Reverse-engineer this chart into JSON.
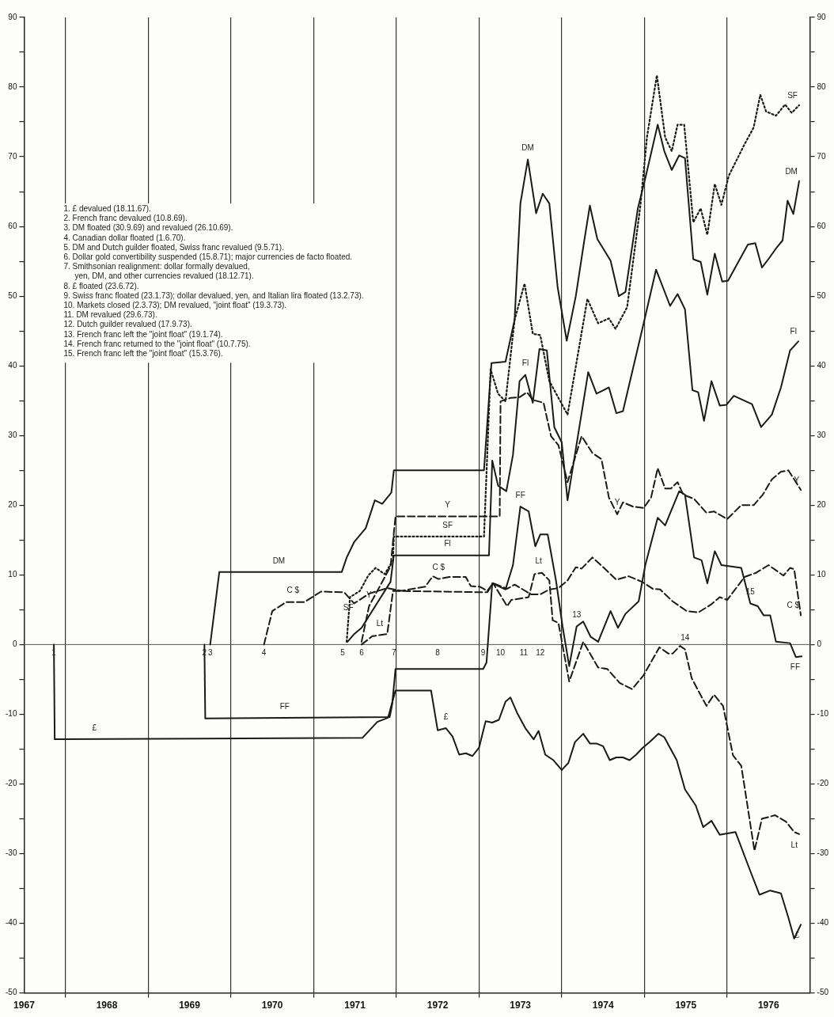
{
  "chart_data": {
    "type": "line",
    "xlim": [
      1967.5,
      1977
    ],
    "xticks": [
      {
        "value": 1967.5,
        "label": "1967"
      },
      {
        "value": 1968,
        "label": null
      },
      {
        "value": 1968.5,
        "label": "1968"
      },
      {
        "value": 1969,
        "label": null
      },
      {
        "value": 1969.5,
        "label": "1969"
      },
      {
        "value": 1970,
        "label": null
      },
      {
        "value": 1970.5,
        "label": "1970"
      },
      {
        "value": 1971,
        "label": null
      },
      {
        "value": 1971.5,
        "label": "1971"
      },
      {
        "value": 1972,
        "label": null
      },
      {
        "value": 1972.5,
        "label": "1972"
      },
      {
        "value": 1973,
        "label": null
      },
      {
        "value": 1973.5,
        "label": "1973"
      },
      {
        "value": 1974,
        "label": null
      },
      {
        "value": 1974.5,
        "label": "1974"
      },
      {
        "value": 1975,
        "label": null
      },
      {
        "value": 1975.5,
        "label": "1975"
      },
      {
        "value": 1976,
        "label": null
      },
      {
        "value": 1976.5,
        "label": "1976"
      }
    ],
    "ylim": [
      -50,
      90
    ],
    "yticks": [
      -50,
      {
        "value": -45,
        "label": null
      },
      -40,
      {
        "value": -35,
        "label": null
      },
      -30,
      {
        "value": -25,
        "label": null
      },
      -20,
      {
        "value": -15,
        "label": null
      },
      -10,
      {
        "value": -5,
        "label": null
      },
      0,
      {
        "value": 5,
        "label": null
      },
      10,
      {
        "value": 15,
        "label": null
      },
      20,
      {
        "value": 25,
        "label": null
      },
      30,
      {
        "value": 35,
        "label": null
      },
      40,
      {
        "value": 45,
        "label": null
      },
      50,
      {
        "value": 55,
        "label": null
      },
      60,
      {
        "value": 65,
        "label": null
      },
      70,
      {
        "value": 75,
        "label": null
      },
      80,
      {
        "value": 85,
        "label": null
      },
      90
    ],
    "y2lim": [
      -50,
      90
    ],
    "y2ticks": [
      -50,
      {
        "value": -45,
        "label": null
      },
      -40,
      {
        "value": -35,
        "label": null
      },
      -30,
      {
        "value": -25,
        "label": null
      },
      -20,
      {
        "value": -15,
        "label": null
      },
      -10,
      {
        "value": -5,
        "label": null
      },
      0,
      {
        "value": 5,
        "label": null
      },
      10,
      {
        "value": 15,
        "label": null
      },
      20,
      {
        "value": 25,
        "label": null
      },
      30,
      {
        "value": 35,
        "label": null
      },
      40,
      {
        "value": 45,
        "label": null
      },
      50,
      {
        "value": 55,
        "label": null
      },
      60,
      {
        "value": 65,
        "label": null
      },
      70,
      {
        "value": 75,
        "label": null
      },
      80,
      {
        "value": 85,
        "label": null
      },
      90
    ],
    "grid": "x",
    "legend": false,
    "ref_lines": [
      {
        "axis": "y",
        "value": 0,
        "color": "#555555"
      }
    ],
    "series": [
      {
        "name": "DM",
        "color": "#1a1a1a",
        "line_style": "solid",
        "x": [
          1969.75,
          1969.86,
          1971.34,
          1971.4,
          1971.49,
          1971.63,
          1971.74,
          1971.83,
          1971.94,
          1971.97,
          1973.06,
          1973.15,
          1973.32,
          1973.43,
          1973.5,
          1973.59,
          1973.69,
          1973.77,
          1973.85,
          1973.95,
          1974.06,
          1974.17,
          1974.27,
          1974.34,
          1974.43,
          1974.59,
          1974.69,
          1974.77,
          1974.92,
          1975.01,
          1975.16,
          1975.24,
          1975.33,
          1975.42,
          1975.49,
          1975.59,
          1975.68,
          1975.76,
          1975.85,
          1975.94,
          1976.01,
          1976.25,
          1976.34,
          1976.42,
          1976.51,
          1976.6,
          1976.67,
          1976.73,
          1976.8,
          1976.87
        ],
        "values": [
          0,
          10.4,
          10.4,
          12.5,
          14.7,
          16.7,
          20.7,
          20.2,
          21.8,
          25,
          25,
          40.4,
          40.6,
          46.6,
          63.3,
          69.6,
          61.9,
          64.7,
          63.3,
          51.3,
          43.6,
          50,
          57.8,
          63,
          58.2,
          55.1,
          50,
          50.6,
          62.6,
          66.9,
          74.6,
          70.8,
          68.1,
          70.2,
          69.8,
          55.3,
          54.9,
          50.2,
          56.1,
          52.1,
          52.2,
          57.4,
          57.6,
          54.1,
          55.5,
          57,
          58,
          63.7,
          61.8,
          66.5
        ]
      },
      {
        "name": "SF",
        "color": "#1a1a1a",
        "line_style": "dotted",
        "x": [
          1971.4,
          1971.44,
          1971.56,
          1971.66,
          1971.75,
          1971.86,
          1971.96,
          1971.97,
          1973.06,
          1973.14,
          1973.23,
          1973.32,
          1973.43,
          1973.55,
          1973.65,
          1973.74,
          1973.85,
          1974.07,
          1974.31,
          1974.44,
          1974.57,
          1974.65,
          1974.79,
          1974.95,
          1975.03,
          1975.15,
          1975.25,
          1975.33,
          1975.4,
          1975.48,
          1975.59,
          1975.68,
          1975.76,
          1975.85,
          1975.93,
          1976.02,
          1976.21,
          1976.32,
          1976.4,
          1976.47,
          1976.59,
          1976.7,
          1976.78,
          1976.87
        ],
        "values": [
          0.4,
          6.8,
          7.7,
          9.9,
          11,
          10.1,
          12.1,
          15.5,
          15.5,
          39.5,
          36,
          34.9,
          46.6,
          51.8,
          44.6,
          44.4,
          37.8,
          33,
          49.6,
          46.1,
          46.8,
          45.3,
          48.4,
          62.9,
          72.8,
          81.7,
          72.8,
          70.8,
          74.6,
          74.6,
          60.6,
          62.6,
          58.8,
          66.1,
          63.1,
          67.3,
          71.8,
          74.2,
          78.9,
          76.5,
          75.9,
          77.5,
          76.3,
          77.4
        ]
      },
      {
        "name": "Fl",
        "color": "#1a1a1a",
        "line_style": "solid",
        "x": [
          1971.41,
          1971.49,
          1971.58,
          1971.93,
          1971.97,
          1973.12,
          1973.16,
          1973.23,
          1973.33,
          1973.41,
          1973.49,
          1973.56,
          1973.65,
          1973.73,
          1973.82,
          1973.91,
          1974,
          1974.07,
          1974.32,
          1974.42,
          1974.57,
          1974.66,
          1974.74,
          1974.99,
          1975.14,
          1975.31,
          1975.4,
          1975.49,
          1975.58,
          1975.65,
          1975.72,
          1975.81,
          1975.91,
          1975.99,
          1976.08,
          1976.3,
          1976.41,
          1976.54,
          1976.65,
          1976.76,
          1976.86
        ],
        "values": [
          0.4,
          1.5,
          2.4,
          9,
          12.8,
          12.8,
          26.4,
          22.8,
          22,
          27.2,
          37.8,
          38.7,
          34.7,
          42.4,
          42.2,
          31.2,
          29,
          20.7,
          39.1,
          36,
          36.9,
          33.2,
          33.5,
          46.1,
          53.8,
          48.6,
          50.3,
          48.1,
          36.5,
          36.2,
          32.1,
          37.8,
          34.3,
          34.4,
          35.7,
          34.5,
          31.2,
          33,
          36.9,
          42.2,
          43.5
        ]
      },
      {
        "name": "Y",
        "color": "#1a1a1a",
        "line_style": "dashed",
        "x": [
          1971.58,
          1971.67,
          1971.93,
          1971.99,
          1973.25,
          1973.26,
          1973.38,
          1973.49,
          1973.58,
          1973.65,
          1973.78,
          1973.87,
          1973.96,
          1974.07,
          1974.24,
          1974.37,
          1974.48,
          1974.57,
          1974.67,
          1974.74,
          1974.86,
          1974.99,
          1975.08,
          1975.16,
          1975.25,
          1975.32,
          1975.4,
          1975.47,
          1975.6,
          1975.75,
          1975.84,
          1976,
          1976.17,
          1976.32,
          1976.43,
          1976.54,
          1976.65,
          1976.74,
          1976.81,
          1976.89
        ],
        "values": [
          0.4,
          5.5,
          11.2,
          18.4,
          18.4,
          34.9,
          35.4,
          35.5,
          36.2,
          35.1,
          34.7,
          29.9,
          28.6,
          23.3,
          29.9,
          27.5,
          26.6,
          21.1,
          18.7,
          20.4,
          19.8,
          19.6,
          21.1,
          25.3,
          22.4,
          22.4,
          23.3,
          21.5,
          20.9,
          18.9,
          19.1,
          18,
          20,
          20,
          21.5,
          23.7,
          24.8,
          25,
          23.7,
          22.2
        ]
      },
      {
        "name": "C $",
        "color": "#1a1a1a",
        "line_style": "dashed",
        "x": [
          1970.4,
          1970.5,
          1970.67,
          1970.89,
          1971.09,
          1971.37,
          1971.49,
          1971.67,
          1971.89,
          1972.06,
          1972.35,
          1972.44,
          1972.51,
          1972.64,
          1972.84,
          1972.9,
          1973.01,
          1973.1,
          1973.17,
          1973.34,
          1973.43,
          1973.63,
          1973.74,
          1973.85,
          1973.96,
          1974.07,
          1974.17,
          1974.24,
          1974.37,
          1974.51,
          1974.66,
          1974.81,
          1974.97,
          1975.1,
          1975.19,
          1975.34,
          1975.51,
          1975.65,
          1975.8,
          1975.91,
          1976,
          1976.21,
          1976.35,
          1976.5,
          1976.68,
          1976.76,
          1976.81,
          1976.89
        ],
        "values": [
          0,
          4.8,
          6.1,
          6.1,
          7.6,
          7.5,
          5.9,
          7.3,
          8.1,
          7.7,
          8.3,
          9.8,
          9.4,
          9.7,
          9.7,
          8.4,
          8.3,
          7.7,
          8.8,
          8,
          8.6,
          7.2,
          7.2,
          7.9,
          8.1,
          9.2,
          11.1,
          10.9,
          12.5,
          11,
          9.3,
          9.8,
          9,
          8,
          7.9,
          6.2,
          4.8,
          4.6,
          5.7,
          6.8,
          6.4,
          9.7,
          10.3,
          11.4,
          9.9,
          11,
          10.8,
          4.2
        ]
      },
      {
        "name": "FF",
        "color": "#1a1a1a",
        "line_style": "solid",
        "x": [
          1969.68,
          1969.69,
          1971.92,
          1971.95,
          1971.99,
          1973.05,
          1973.09,
          1973.16,
          1973.32,
          1973.41,
          1973.5,
          1973.6,
          1973.68,
          1973.74,
          1973.83,
          1973.93,
          1974.01,
          1974.09,
          1974.18,
          1974.26,
          1974.35,
          1974.44,
          1974.59,
          1974.68,
          1974.77,
          1974.93,
          1975.01,
          1975.16,
          1975.25,
          1975.42,
          1975.49,
          1975.6,
          1975.69,
          1975.76,
          1975.85,
          1975.93,
          1976.17,
          1976.28,
          1976.37,
          1976.44,
          1976.52,
          1976.59,
          1976.76,
          1976.83,
          1976.9
        ],
        "values": [
          0,
          -10.6,
          -10.4,
          -8.6,
          -3.5,
          -3.5,
          -2.6,
          8.8,
          7.9,
          11.4,
          19.8,
          19.1,
          14.1,
          15.8,
          15.8,
          9.2,
          2.6,
          -3.1,
          2.6,
          3.3,
          1.1,
          0.4,
          4.8,
          2.4,
          4.4,
          6.2,
          11.4,
          18.2,
          17.1,
          22,
          21.5,
          12.5,
          12.1,
          8.8,
          13.4,
          11.4,
          11,
          5.9,
          5.5,
          4.2,
          4.2,
          0.4,
          0.2,
          -1.8,
          -1.7
        ]
      },
      {
        "name": "Lt",
        "color": "#1a1a1a",
        "line_style": "dashed",
        "x": [
          1971.58,
          1971.71,
          1971.89,
          1971.96,
          1973.1,
          1973.17,
          1973.34,
          1973.39,
          1973.5,
          1973.6,
          1973.67,
          1973.76,
          1973.85,
          1973.89,
          1973.96,
          1974.09,
          1974.26,
          1974.44,
          1974.55,
          1974.7,
          1974.85,
          1974.99,
          1975.18,
          1975.29,
          1975.34,
          1975.43,
          1975.49,
          1975.57,
          1975.64,
          1975.75,
          1975.84,
          1975.95,
          1976.07,
          1976.17,
          1976.33,
          1976.42,
          1976.58,
          1976.71,
          1976.81,
          1976.87
        ],
        "values": [
          0,
          1.2,
          1.5,
          7.7,
          7.5,
          8.8,
          5.5,
          6.4,
          6.6,
          6.8,
          10.1,
          10.3,
          9.2,
          3.5,
          3.1,
          -5.3,
          0.4,
          -3.3,
          -3.5,
          -5.5,
          -6.4,
          -4.4,
          -0.4,
          -1.3,
          -1.3,
          -0.2,
          -0.7,
          -4.8,
          -6.4,
          -8.8,
          -7.2,
          -8.8,
          -15.9,
          -17.4,
          -29.6,
          -25,
          -24.5,
          -25.4,
          -26.9,
          -27.2
        ]
      },
      {
        "name": "£",
        "color": "#1a1a1a",
        "line_style": "solid",
        "x": [
          1967.86,
          1967.87,
          1971.59,
          1971.77,
          1971.9,
          1971.99,
          1972.42,
          1972.5,
          1972.6,
          1972.68,
          1972.76,
          1972.84,
          1972.92,
          1973,
          1973.08,
          1973.16,
          1973.24,
          1973.32,
          1973.38,
          1973.46,
          1973.56,
          1973.66,
          1973.72,
          1973.8,
          1973.9,
          1974,
          1974.08,
          1974.16,
          1974.26,
          1974.34,
          1974.42,
          1974.5,
          1974.58,
          1974.66,
          1974.74,
          1974.82,
          1974.9,
          1974.98,
          1975.06,
          1975.17,
          1975.24,
          1975.39,
          1975.49,
          1975.62,
          1975.71,
          1975.81,
          1975.91,
          1976.1,
          1976.26,
          1976.39,
          1976.52,
          1976.65,
          1976.74,
          1976.81,
          1976.89
        ],
        "values": [
          0,
          -13.6,
          -13.4,
          -11.1,
          -10.5,
          -6.6,
          -6.6,
          -12.3,
          -12,
          -13.2,
          -15.8,
          -15.6,
          -16,
          -14.8,
          -11,
          -11.2,
          -10.8,
          -8.2,
          -7.6,
          -9.8,
          -12,
          -13.6,
          -12.4,
          -15.8,
          -16.6,
          -18,
          -17,
          -14,
          -12.8,
          -14.2,
          -14.2,
          -14.6,
          -16.6,
          -16.2,
          -16.2,
          -16.6,
          -15.8,
          -14.8,
          -14,
          -12.8,
          -13.3,
          -16.6,
          -20.8,
          -23.1,
          -26.2,
          -25.3,
          -27.3,
          -26.9,
          -31.9,
          -35.9,
          -35.3,
          -35.7,
          -39.2,
          -42.2,
          -40.2
        ]
      }
    ],
    "annotations": [
      "1. £ devalued (18.11.67).",
      "2. French franc devalued (10.8.69).",
      "3. DM floated (30.9.69) and revalued (26.10.69).",
      "4. Canadian dollar floated (1.6.70).",
      "5. DM and Dutch guilder floated, Swiss franc revalued (9.5.71).",
      "6. Dollar gold convertibility suspended (15.8.71); major currencies de facto floated.",
      "7. Smithsonian realignment: dollar formally devalued,\nyen, DM, and other currencies revalued (18.12.71).",
      "8. £ floated (23.6.72).",
      "9. Swiss franc floated (23.1.73); dollar devalued, yen, and Italian lira floated (13.2.73).",
      "10. Markets closed (2.3.73); DM revalued, \"joint float\" (19.3.73).",
      "11. DM revalued (29.6.73).",
      "12. Dutch guilder revalued (17.9.73).",
      "13. French franc left the \"joint float\" (19.1.74).",
      "14. French franc returned to the \"joint float\" (10.7.75).",
      "15. French franc left the \"joint float\" (15.3.76).",
      {
        "text": "1",
        "x": 1967.86,
        "y": 0
      },
      {
        "text": "2",
        "x": 1969.68,
        "y": 0
      },
      {
        "text": "3",
        "x": 1969.75,
        "y": 0
      },
      {
        "text": "4",
        "x": 1970.4,
        "y": 0
      },
      {
        "text": "5",
        "x": 1971.35,
        "y": 0
      },
      {
        "text": "6",
        "x": 1971.58,
        "y": 0
      },
      {
        "text": "7",
        "x": 1971.97,
        "y": 0
      },
      {
        "text": "8",
        "x": 1972.5,
        "y": 0
      },
      {
        "text": "9",
        "x": 1973.05,
        "y": 0
      },
      {
        "text": "10",
        "x": 1973.26,
        "y": 0
      },
      {
        "text": "11",
        "x": 1973.54,
        "y": 0
      },
      {
        "text": "12",
        "x": 1973.74,
        "y": 0
      },
      {
        "text": "13",
        "x": 1974.18,
        "y": 2.6
      },
      {
        "text": "14",
        "x": 1975.49,
        "y": -0.7
      },
      {
        "text": "15",
        "x": 1976.28,
        "y": 5.9
      },
      {
        "text": "DM",
        "x": 1970.58,
        "y": 10.4
      },
      {
        "text": "DM",
        "x": 1973.59,
        "y": 69.6
      },
      {
        "text": "C $",
        "x": 1970.75,
        "y": 6.1
      },
      {
        "text": "C $",
        "x": 1972.51,
        "y": 9.4
      },
      {
        "text": "SF",
        "x": 1971.42,
        "y": 3.6
      },
      {
        "text": "SF",
        "x": 1972.62,
        "y": 15.5
      },
      {
        "text": "Fl",
        "x": 1972.62,
        "y": 12.8
      },
      {
        "text": "Fl",
        "x": 1973.56,
        "y": 38.7
      },
      {
        "text": "Y",
        "x": 1971.67,
        "y": 5.5
      },
      {
        "text": "Y",
        "x": 1972.62,
        "y": 18.4
      },
      {
        "text": "Y",
        "x": 1974.67,
        "y": 18.7
      },
      {
        "text": "Lt",
        "x": 1971.8,
        "y": 1.35
      },
      {
        "text": "Lt",
        "x": 1973.72,
        "y": 10.3
      },
      {
        "text": "FF",
        "x": 1970.65,
        "y": -10.5
      },
      {
        "text": "FF",
        "x": 1973.5,
        "y": 19.8
      },
      {
        "text": "£",
        "x": 1968.35,
        "y": -13.6
      },
      {
        "text": "£",
        "x": 1972.6,
        "y": -12
      }
    ]
  }
}
